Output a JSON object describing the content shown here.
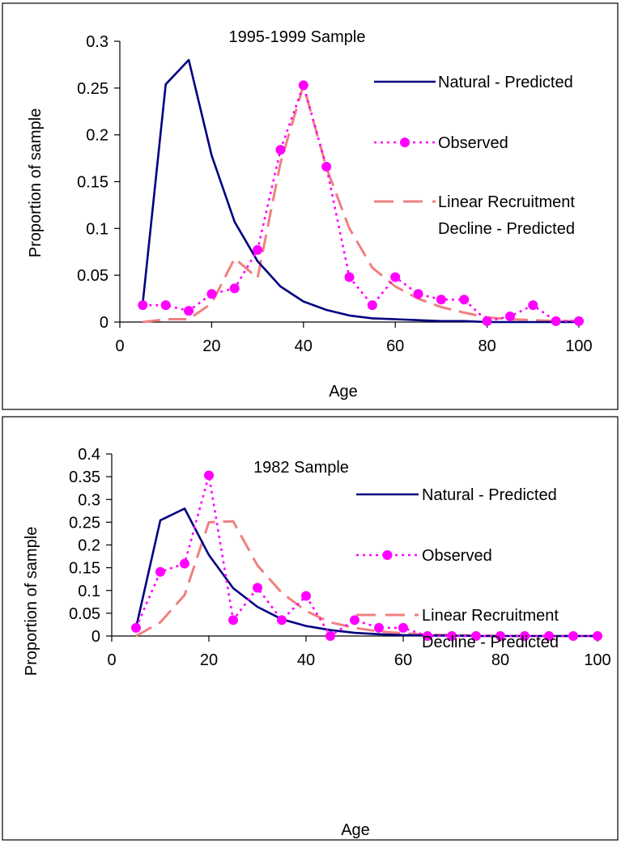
{
  "chart_data": [
    {
      "type": "line",
      "title": "1995-1999 Sample",
      "xlabel": "Age",
      "ylabel": "Proportion of sample",
      "xlim": [
        0,
        100
      ],
      "ylim": [
        0,
        0.3
      ],
      "x_ticks": [
        "0",
        "20",
        "40",
        "60",
        "80",
        "100"
      ],
      "y_ticks": [
        "0",
        "0.05",
        "0.1",
        "0.15",
        "0.2",
        "0.25",
        "0.3"
      ],
      "legend_position": "right",
      "grid": false,
      "series": [
        {
          "name": "Natural - Predicted",
          "style": "solid",
          "color": "#000080",
          "x": [
            5,
            10,
            15,
            20,
            25,
            30,
            35,
            40,
            45,
            50,
            55,
            60,
            65,
            70,
            75,
            80,
            85,
            90,
            95,
            100
          ],
          "y": [
            0.02,
            0.254,
            0.28,
            0.178,
            0.107,
            0.065,
            0.038,
            0.022,
            0.013,
            0.007,
            0.004,
            0.003,
            0.002,
            0.001,
            0.001,
            0.0,
            0.0,
            0.0,
            0.0,
            0.0
          ]
        },
        {
          "name": "Observed",
          "style": "dotted-markers",
          "color": "#ff00ff",
          "x": [
            5,
            10,
            15,
            20,
            25,
            30,
            35,
            40,
            45,
            50,
            55,
            60,
            65,
            70,
            75,
            80,
            85,
            90,
            95,
            100
          ],
          "y": [
            0.018,
            0.018,
            0.012,
            0.03,
            0.036,
            0.077,
            0.184,
            0.253,
            0.166,
            0.048,
            0.018,
            0.048,
            0.03,
            0.024,
            0.024,
            0.001,
            0.006,
            0.018,
            0.001,
            0.001
          ]
        },
        {
          "name": "Linear Recruitment Decline - Predicted",
          "name_lines": [
            "Linear Recruitment",
            "Decline - Predicted"
          ],
          "style": "dashed",
          "color": "#f08080",
          "x": [
            5,
            10,
            15,
            20,
            25,
            30,
            35,
            40,
            45,
            50,
            55,
            60,
            65,
            70,
            75,
            80,
            85,
            90,
            95,
            100
          ],
          "y": [
            0.0,
            0.003,
            0.003,
            0.02,
            0.068,
            0.047,
            0.17,
            0.253,
            0.165,
            0.1,
            0.058,
            0.038,
            0.025,
            0.016,
            0.01,
            0.005,
            0.003,
            0.002,
            0.001,
            0.001
          ]
        }
      ]
    },
    {
      "type": "line",
      "title": "1982 Sample",
      "xlabel": "Age",
      "ylabel": "Proportion of sample",
      "xlim": [
        0,
        100
      ],
      "ylim": [
        0,
        0.4
      ],
      "x_ticks": [
        "0",
        "20",
        "40",
        "60",
        "80",
        "100"
      ],
      "y_ticks": [
        "0",
        "0.05",
        "0.1",
        "0.15",
        "0.2",
        "0.25",
        "0.3",
        "0.35",
        "0.4"
      ],
      "legend_position": "right",
      "grid": false,
      "series": [
        {
          "name": "Natural - Predicted",
          "style": "solid",
          "color": "#000080",
          "x": [
            5,
            10,
            15,
            20,
            25,
            30,
            35,
            40,
            45,
            50,
            55,
            60,
            65,
            70,
            75,
            80,
            85,
            90,
            95,
            100
          ],
          "y": [
            0.018,
            0.254,
            0.28,
            0.178,
            0.105,
            0.064,
            0.037,
            0.022,
            0.013,
            0.007,
            0.004,
            0.002,
            0.001,
            0.001,
            0.0,
            0.0,
            0.0,
            0.0,
            0.0,
            0.0
          ]
        },
        {
          "name": "Observed",
          "style": "dotted-markers",
          "color": "#ff00ff",
          "x": [
            5,
            10,
            15,
            20,
            25,
            30,
            35,
            40,
            45,
            50,
            55,
            60,
            65,
            70,
            75,
            80,
            85,
            90,
            95,
            100
          ],
          "y": [
            0.018,
            0.141,
            0.159,
            0.353,
            0.035,
            0.106,
            0.035,
            0.088,
            0.0,
            0.035,
            0.018,
            0.018,
            0.0,
            0.0,
            0.0,
            0.0,
            0.0,
            0.0,
            0.0,
            0.0
          ]
        },
        {
          "name": "Linear Recruitment Decline - Predicted",
          "name_lines": [
            "Linear Recruitment",
            "Decline - Predicted"
          ],
          "style": "dashed",
          "color": "#f08080",
          "x": [
            5,
            10,
            15,
            20,
            25,
            30,
            35,
            40,
            45,
            50,
            55,
            60,
            65,
            70,
            75,
            80,
            85,
            90,
            95,
            100
          ],
          "y": [
            0.0,
            0.03,
            0.09,
            0.25,
            0.252,
            0.155,
            0.095,
            0.055,
            0.03,
            0.018,
            0.01,
            0.006,
            0.003,
            0.002,
            0.001,
            0.0,
            0.0,
            0.0,
            0.0,
            0.0
          ]
        }
      ]
    }
  ]
}
